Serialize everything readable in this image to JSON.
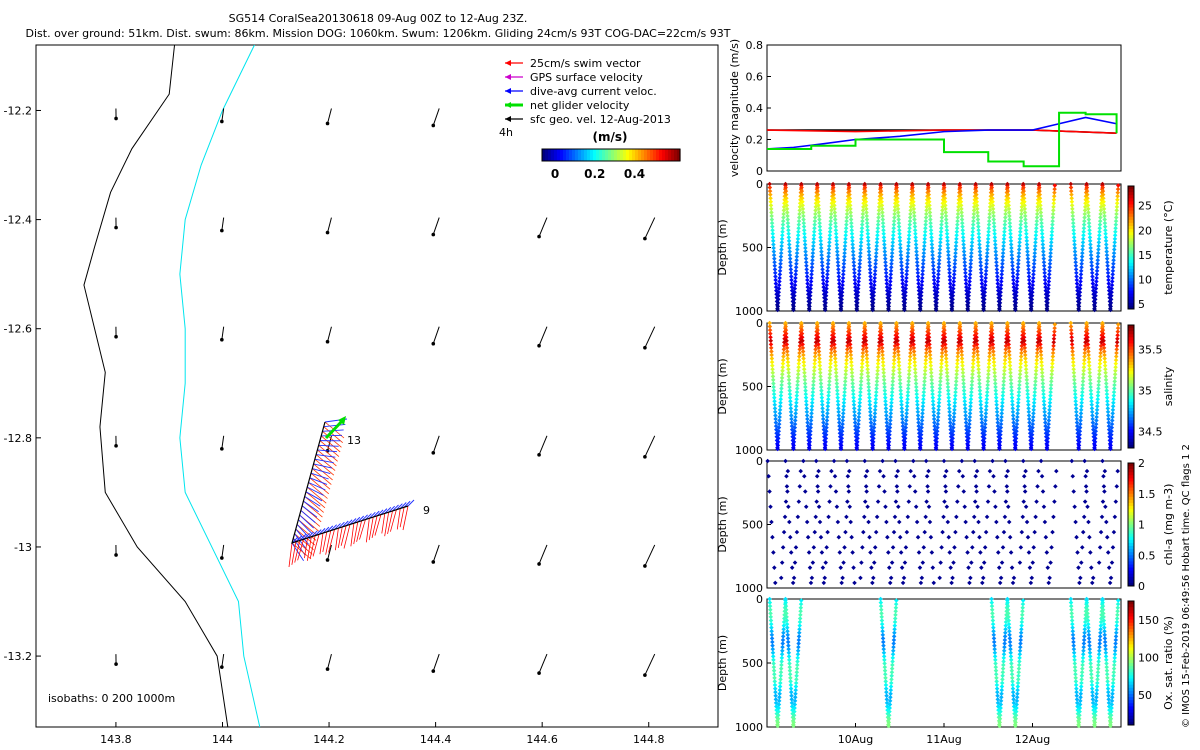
{
  "title_line1": "SG514 CoralSea20130618 09-Aug 00Z to 12-Aug 23Z.",
  "title_line2": "Dist. over ground: 51km. Dist. swum: 86km. Mission DOG: 1060km. Swum: 1206km. Gliding 24cm/s 93T COG-DAC=22cm/s 93T",
  "side_credit": "© IMOS 15-Feb-2019 06:49:56 Hobart time. QC flags 1  2",
  "map": {
    "xticks": [
      "143.8",
      "144",
      "144.2",
      "144.4",
      "144.6",
      "144.8"
    ],
    "yticks": [
      "-12.2",
      "-12.4",
      "-12.6",
      "-12.8",
      "-13",
      "-13.2"
    ],
    "xlim": [
      143.65,
      144.93
    ],
    "ylim": [
      -13.33,
      -12.08
    ],
    "isobath_note": "isobaths: 0   200  1000m",
    "track_labels": [
      "13",
      "9"
    ],
    "legend_items": [
      {
        "label": "25cm/s swim vector",
        "color": "#ff0000"
      },
      {
        "label": "GPS surface velocity",
        "color": "#cc00cc"
      },
      {
        "label": "dive-avg current veloc.",
        "color": "#0000ff"
      },
      {
        "label": "net glider velocity",
        "color": "#00e000"
      },
      {
        "label": "sfc geo. vel. 12-Aug-2013",
        "color": "#000000"
      }
    ],
    "scale_label": "4h",
    "colorbar": {
      "title": "(m/s)",
      "ticks": [
        "0",
        "0.2",
        "0.4"
      ]
    },
    "colors": {
      "coastline_isobath": "#000000",
      "isobath_1000": "#00e5ee"
    }
  },
  "chart_data": [
    {
      "type": "line",
      "ylabel": "velocity magnitude (m/s)",
      "ylim": [
        0,
        0.8
      ],
      "yticks": [
        "0",
        "0.2",
        "0.4",
        "0.6",
        "0.8"
      ],
      "x_range_days": [
        "09-Aug 00Z",
        "12-Aug 23Z"
      ],
      "series": [
        {
          "color": "#000000",
          "t": [
            9.0,
            10.0,
            11.0,
            12.0,
            12.95
          ],
          "values": [
            0.26,
            0.26,
            0.26,
            0.26,
            0.24
          ]
        },
        {
          "color": "#ff0000",
          "t": [
            9.0,
            10.0,
            11.0,
            12.0,
            12.95
          ],
          "values": [
            0.26,
            0.25,
            0.26,
            0.26,
            0.24
          ]
        },
        {
          "color": "#0000ff",
          "t": [
            9.0,
            9.3,
            9.6,
            10.0,
            10.5,
            11.0,
            11.5,
            12.0,
            12.3,
            12.6,
            12.95
          ],
          "values": [
            0.14,
            0.15,
            0.17,
            0.2,
            0.22,
            0.25,
            0.26,
            0.26,
            0.3,
            0.34,
            0.3
          ]
        },
        {
          "color": "#00e000",
          "t": [
            9.0,
            9.5,
            10.0,
            10.5,
            11.0,
            11.5,
            11.9,
            12.3,
            12.6,
            12.95
          ],
          "values": [
            0.14,
            0.16,
            0.2,
            0.2,
            0.12,
            0.06,
            0.03,
            0.37,
            0.36,
            0.24
          ]
        }
      ]
    },
    {
      "type": "scatter",
      "variable": "temperature",
      "ylabel": "Depth (m)",
      "clabel": "temperature (°C)",
      "ylim": [
        1000,
        0
      ],
      "yticks": [
        "0",
        "500",
        "1000"
      ],
      "cticks": [
        "5",
        "10",
        "15",
        "20",
        "25"
      ],
      "crange": [
        4,
        29
      ]
    },
    {
      "type": "scatter",
      "variable": "salinity",
      "ylabel": "Depth (m)",
      "clabel": "salinity",
      "ylim": [
        1000,
        0
      ],
      "yticks": [
        "0",
        "500",
        "1000"
      ],
      "cticks": [
        "34.5",
        "35",
        "35.5"
      ],
      "crange": [
        34.3,
        35.8
      ]
    },
    {
      "type": "scatter",
      "variable": "chl-a",
      "ylabel": "Depth (m)",
      "clabel": "chl-a (mg m-3)",
      "ylim": [
        1000,
        0
      ],
      "yticks": [
        "0",
        "500",
        "1000"
      ],
      "cticks": [
        "0",
        "0.5",
        "1",
        "1.5",
        "2"
      ],
      "crange": [
        0,
        2
      ]
    },
    {
      "type": "scatter",
      "variable": "oxygen",
      "ylabel": "Depth (m)",
      "clabel": "Ox. sat. ratio (%)",
      "ylim": [
        1000,
        0
      ],
      "yticks": [
        "0",
        "500",
        "1000"
      ],
      "cticks": [
        "50",
        "100",
        "150"
      ],
      "crange": [
        10,
        175
      ],
      "xticks": [
        "10Aug",
        "11Aug",
        "12Aug"
      ]
    }
  ]
}
